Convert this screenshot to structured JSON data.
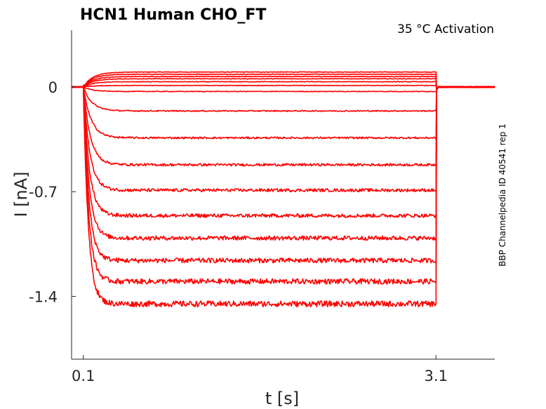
{
  "chart_data": {
    "type": "line",
    "title": "HCN1  Human  CHO_FT",
    "condition": "35 °C  Activation",
    "side_label": "BBP Channelpedia ID 40541 rep 1",
    "xlabel": "t [s]",
    "ylabel": "I [nA]",
    "xlim": [
      0.0,
      3.6
    ],
    "ylim": [
      -1.82,
      0.38
    ],
    "xticks": [
      0.1,
      3.1
    ],
    "xtick_labels": [
      "0.1",
      "3.1"
    ],
    "yticks": [
      0,
      -0.7,
      -1.4
    ],
    "ytick_labels": [
      "0",
      "-0.7",
      "-1.4"
    ],
    "grid": false,
    "color": "#ff0000",
    "step_start": 0.1,
    "step_end": 3.1,
    "baseline": 0.0,
    "series": [
      {
        "steady_state": 0.1
      },
      {
        "steady_state": 0.085
      },
      {
        "steady_state": 0.07
      },
      {
        "steady_state": 0.055
      },
      {
        "steady_state": 0.035
      },
      {
        "steady_state": 0.01
      },
      {
        "steady_state": -0.03
      },
      {
        "steady_state": -0.16
      },
      {
        "steady_state": -0.34
      },
      {
        "steady_state": -0.52
      },
      {
        "steady_state": -0.69
      },
      {
        "steady_state": -0.86
      },
      {
        "steady_state": -1.01
      },
      {
        "steady_state": -1.16
      },
      {
        "steady_state": -1.3
      },
      {
        "steady_state": -1.45
      }
    ]
  }
}
